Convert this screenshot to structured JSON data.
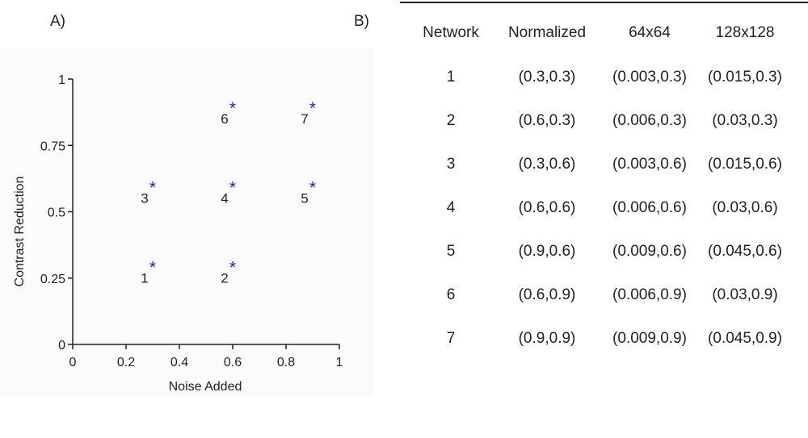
{
  "panel_a_label": "A)",
  "panel_b_label": "B)",
  "chart_data": {
    "type": "scatter",
    "xlabel": "Noise Added",
    "ylabel": "Contrast Reduction",
    "xlim": [
      0,
      1
    ],
    "ylim": [
      0,
      1
    ],
    "xticks": [
      "0",
      "0.2",
      "0.4",
      "0.6",
      "0.8",
      "1"
    ],
    "yticks": [
      "0",
      "0.25",
      "0.5",
      "0.75",
      "1"
    ],
    "xtick_values": [
      0,
      0.2,
      0.4,
      0.6,
      0.8,
      1
    ],
    "ytick_values": [
      0,
      0.25,
      0.5,
      0.75,
      1
    ],
    "grid": false,
    "marker_color": "#1f1fe6",
    "points": [
      {
        "label": "1",
        "x": 0.3,
        "y": 0.3
      },
      {
        "label": "2",
        "x": 0.6,
        "y": 0.3
      },
      {
        "label": "3",
        "x": 0.3,
        "y": 0.6
      },
      {
        "label": "4",
        "x": 0.6,
        "y": 0.6
      },
      {
        "label": "5",
        "x": 0.9,
        "y": 0.6
      },
      {
        "label": "6",
        "x": 0.6,
        "y": 0.9
      },
      {
        "label": "7",
        "x": 0.9,
        "y": 0.9
      }
    ]
  },
  "table": {
    "headers": [
      "Network",
      "Normalized",
      "64x64",
      "128x128"
    ],
    "rows": [
      [
        "1",
        "(0.3,0.3)",
        "(0.003,0.3)",
        "(0.015,0.3)"
      ],
      [
        "2",
        "(0.6,0.3)",
        "(0.006,0.3)",
        "(0.03,0.3)"
      ],
      [
        "3",
        "(0.3,0.6)",
        "(0.003,0.6)",
        "(0.015,0.6)"
      ],
      [
        "4",
        "(0.6,0.6)",
        "(0.006,0.6)",
        "(0.03,0.6)"
      ],
      [
        "5",
        "(0.9,0.6)",
        "(0.009,0.6)",
        "(0.045,0.6)"
      ],
      [
        "6",
        "(0.6,0.9)",
        "(0.006,0.9)",
        "(0.03,0.9)"
      ],
      [
        "7",
        "(0.9,0.9)",
        "(0.009,0.9)",
        "(0.045,0.9)"
      ]
    ]
  }
}
